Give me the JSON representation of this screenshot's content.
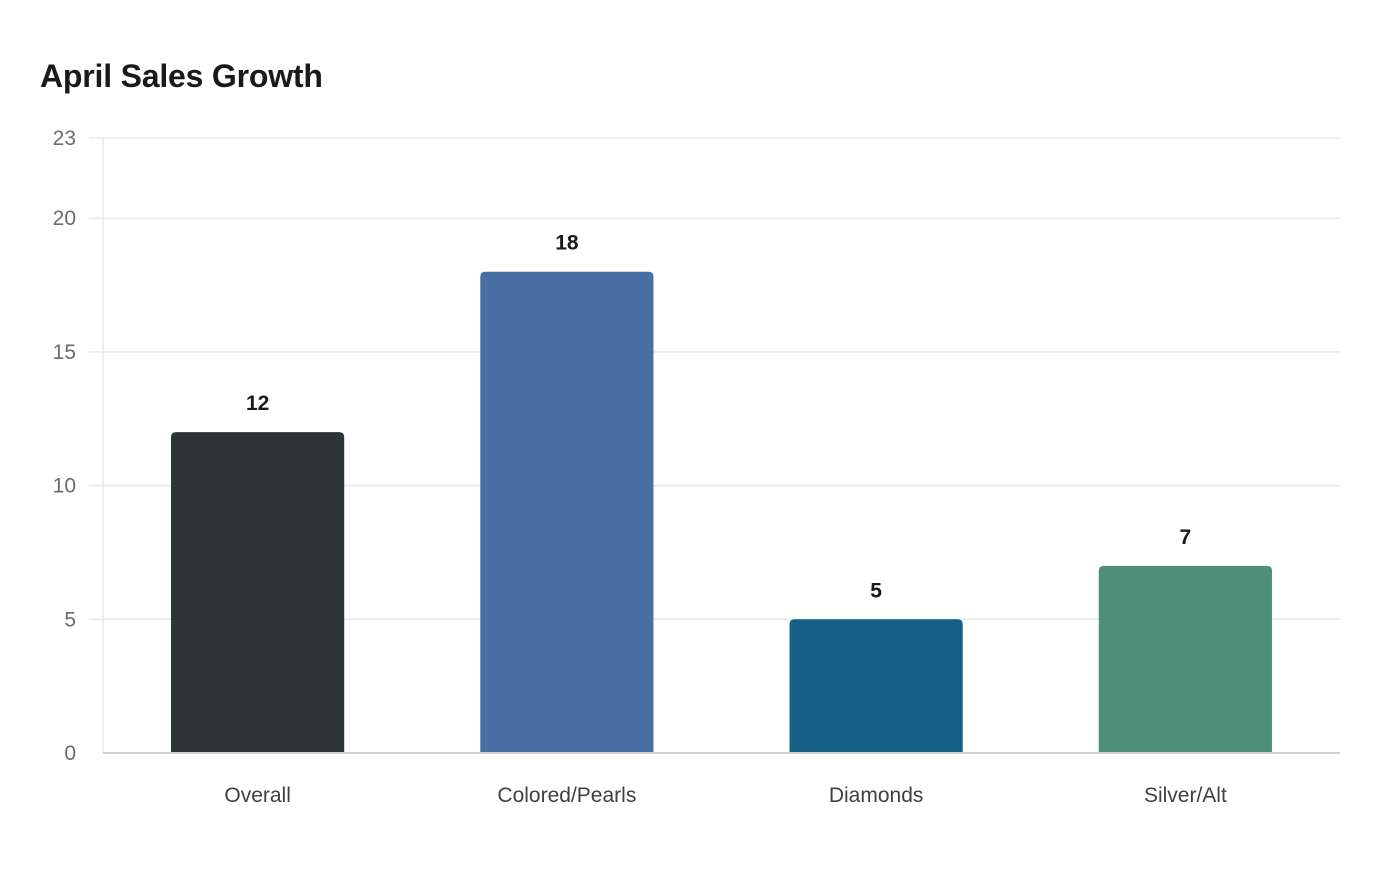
{
  "chart_data": {
    "type": "bar",
    "title": "April Sales Growth",
    "xlabel": "",
    "ylabel": "",
    "categories": [
      "Overall",
      "Colored/Pearls",
      "Diamonds",
      "Silver/Alt"
    ],
    "values": [
      12,
      18,
      5,
      7
    ],
    "colors": [
      "#2d3436",
      "#4a6fa5",
      "#166088",
      "#4f8f7a"
    ],
    "ylim": [
      0,
      23
    ],
    "yticks": [
      0,
      5,
      10,
      15,
      20,
      23
    ],
    "grid": true,
    "legend": "none",
    "data_labels": true
  }
}
